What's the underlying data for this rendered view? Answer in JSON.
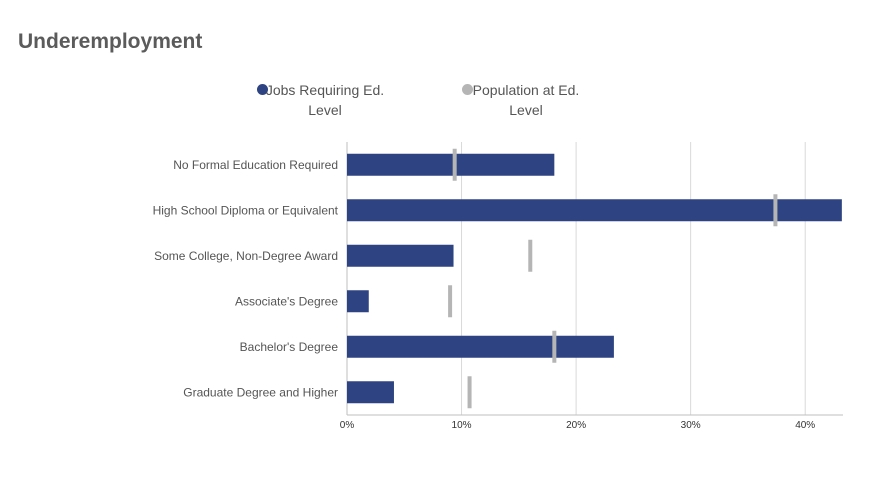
{
  "title": "Underemployment",
  "legend": {
    "series1_line1": "Jobs Requiring Ed.",
    "series1_line2": "Level",
    "series2_line1": "Population at Ed.",
    "series2_line2": "Level"
  },
  "colors": {
    "jobs": "#2e4482",
    "population": "#b5b5b5",
    "grid": "#d9d9d9",
    "axis": "#bfbfbf"
  },
  "chart_data": {
    "type": "bar",
    "orientation": "horizontal",
    "categories": [
      "No Formal Education Required",
      "High School Diploma or Equivalent",
      "Some College, Non-Degree Award",
      "Associate's Degree",
      "Bachelor's Degree",
      "Graduate Degree and Higher"
    ],
    "series": [
      {
        "name": "Jobs Requiring Ed. Level",
        "type": "bar",
        "values": [
          18.1,
          43.2,
          9.3,
          1.9,
          23.3,
          4.1
        ]
      },
      {
        "name": "Population at Ed. Level",
        "type": "marker",
        "values": [
          9.4,
          37.4,
          16.0,
          9.0,
          18.1,
          10.7
        ]
      }
    ],
    "xlim": [
      0,
      43.3
    ],
    "xticks": [
      0,
      10,
      20,
      30,
      40
    ],
    "xtick_labels": [
      "0%",
      "10%",
      "20%",
      "30%",
      "40%"
    ],
    "grid": true,
    "legend_position": "top"
  }
}
